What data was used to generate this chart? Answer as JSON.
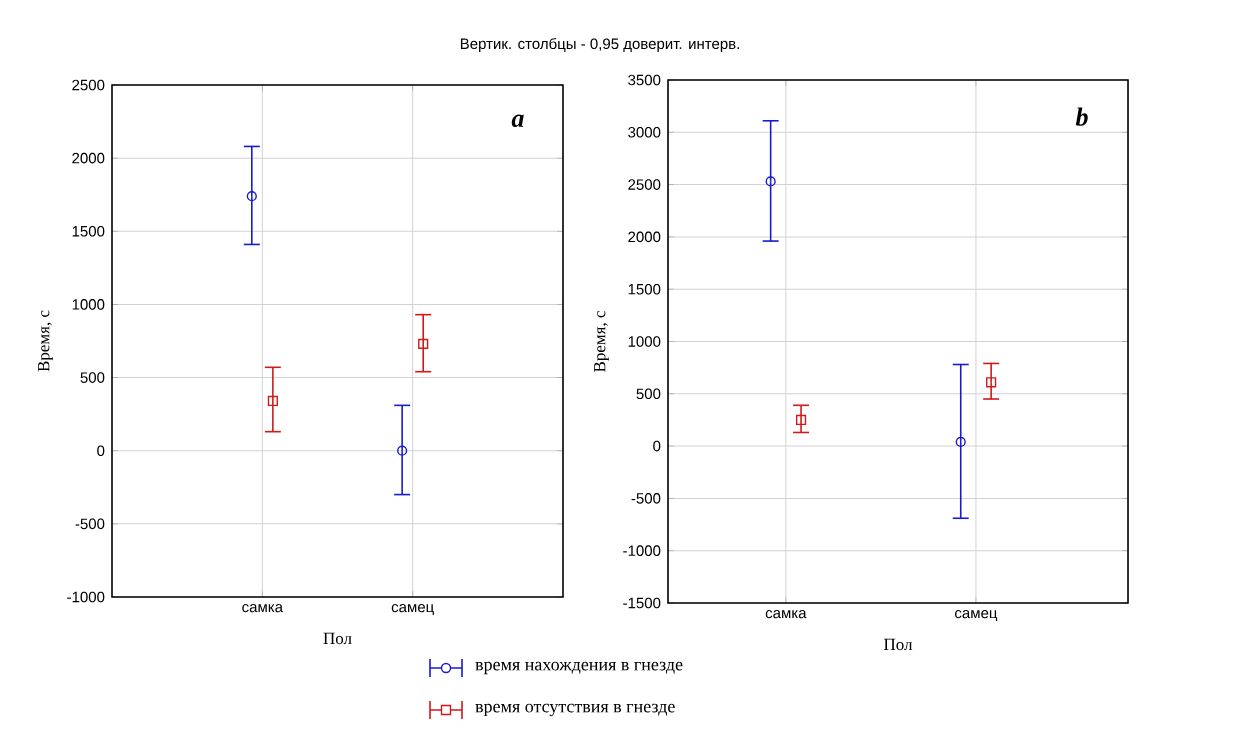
{
  "chart_data": [
    {
      "type": "scatter",
      "title": "Вертик. столбцы - 0,95 доверит. интерв.",
      "xlabel": "Пол",
      "ylabel": "Время, с",
      "annotations": [
        "a"
      ],
      "categories": [
        "самка",
        "самец"
      ],
      "ylim": [
        -1000,
        2500
      ],
      "yticks": [
        -1000,
        -500,
        0,
        500,
        1000,
        1500,
        2000,
        2500
      ],
      "grid": true,
      "legend": "bottom",
      "series": [
        {
          "name": "время нахождения в гнезде",
          "color": "#1a1ad0",
          "marker": "circle",
          "values": [
            1740,
            0
          ],
          "errors": [
            [
              1410,
              2080
            ],
            [
              -300,
              310
            ]
          ]
        },
        {
          "name": "время отсутствия в гнезде",
          "color": "#d01a1a",
          "marker": "square",
          "values": [
            340,
            730
          ],
          "errors": [
            [
              130,
              570
            ],
            [
              540,
              930
            ]
          ]
        }
      ]
    },
    {
      "type": "scatter",
      "xlabel": "Пол",
      "ylabel": "Время, с",
      "annotations": [
        "b"
      ],
      "categories": [
        "самка",
        "самец"
      ],
      "ylim": [
        -1500,
        3500
      ],
      "yticks": [
        -1500,
        -1000,
        -500,
        0,
        500,
        1000,
        1500,
        2000,
        2500,
        3000,
        3500
      ],
      "grid": true,
      "series": [
        {
          "color": "#1a1ad0",
          "marker": "circle",
          "values": [
            2530,
            40
          ],
          "errors": [
            [
              1960,
              3110
            ],
            [
              -690,
              780
            ]
          ]
        },
        {
          "color": "#d01a1a",
          "marker": "square",
          "values": [
            250,
            610
          ],
          "errors": [
            [
              130,
              390
            ],
            [
              450,
              790
            ]
          ]
        }
      ]
    }
  ]
}
